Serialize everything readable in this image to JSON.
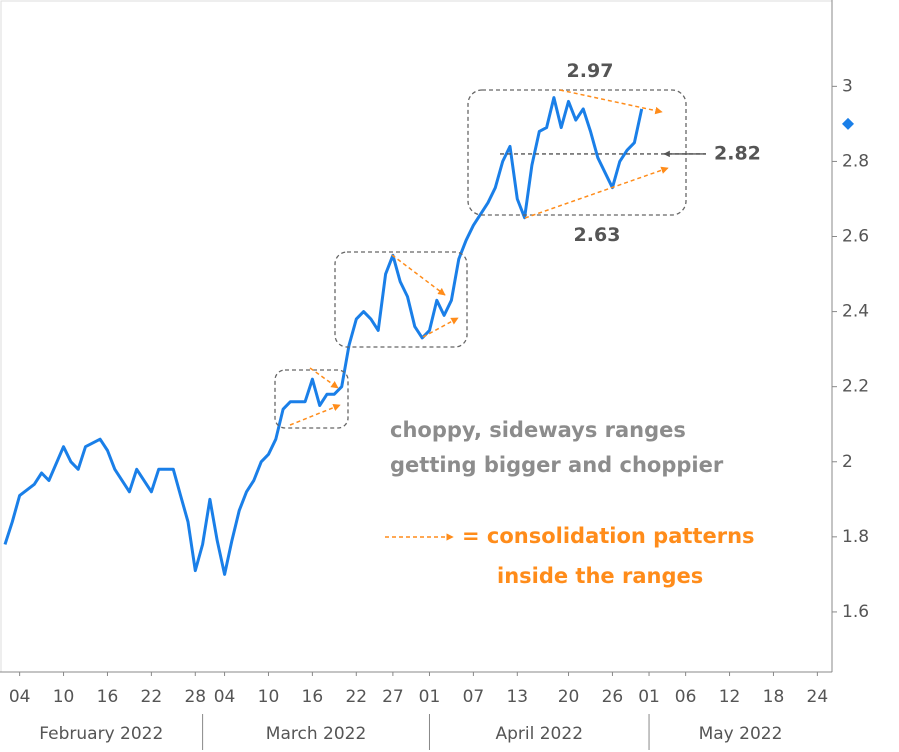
{
  "chart_data": {
    "type": "line",
    "x": [
      "2022-02-02",
      "2022-02-03",
      "2022-02-04",
      "2022-02-06",
      "2022-02-07",
      "2022-02-08",
      "2022-02-10",
      "2022-02-11",
      "2022-02-12",
      "2022-02-13",
      "2022-02-15",
      "2022-02-16",
      "2022-02-17",
      "2022-02-19",
      "2022-02-20",
      "2022-02-22",
      "2022-02-23",
      "2022-02-25",
      "2022-02-26",
      "2022-02-27",
      "2022-02-28",
      "2022-03-01",
      "2022-03-02",
      "2022-03-03",
      "2022-03-04",
      "2022-03-05",
      "2022-03-06",
      "2022-03-07",
      "2022-03-08",
      "2022-03-09",
      "2022-03-10",
      "2022-03-11",
      "2022-03-12",
      "2022-03-13",
      "2022-03-15",
      "2022-03-16",
      "2022-03-17",
      "2022-03-18",
      "2022-03-19",
      "2022-03-20",
      "2022-03-21",
      "2022-03-22",
      "2022-03-23",
      "2022-03-24",
      "2022-03-25",
      "2022-03-26",
      "2022-03-27",
      "2022-03-28",
      "2022-03-29",
      "2022-03-30",
      "2022-03-31",
      "2022-04-01",
      "2022-04-02",
      "2022-04-03",
      "2022-04-04",
      "2022-04-05",
      "2022-04-06",
      "2022-04-07",
      "2022-04-09",
      "2022-04-10",
      "2022-04-11",
      "2022-04-12",
      "2022-04-13",
      "2022-04-14",
      "2022-04-15",
      "2022-04-16",
      "2022-04-17",
      "2022-04-18",
      "2022-04-19",
      "2022-04-20",
      "2022-04-21",
      "2022-04-22",
      "2022-04-23",
      "2022-04-24",
      "2022-04-25",
      "2022-04-26",
      "2022-04-27",
      "2022-04-28",
      "2022-04-29",
      "2022-04-30"
    ],
    "series": [
      {
        "color": "#1a7fe8",
        "values": [
          1.78,
          1.84,
          1.91,
          1.94,
          1.97,
          1.95,
          2.04,
          2.0,
          1.98,
          2.04,
          2.06,
          2.03,
          1.98,
          1.92,
          1.98,
          1.92,
          1.98,
          1.98,
          1.91,
          1.84,
          1.71,
          1.78,
          1.9,
          1.79,
          1.7,
          1.79,
          1.87,
          1.92,
          1.95,
          2.0,
          2.02,
          2.06,
          2.14,
          2.16,
          2.16,
          2.22,
          2.15,
          2.18,
          2.18,
          2.2,
          2.31,
          2.38,
          2.4,
          2.38,
          2.35,
          2.5,
          2.55,
          2.48,
          2.44,
          2.36,
          2.33,
          2.35,
          2.43,
          2.39,
          2.43,
          2.54,
          2.59,
          2.63,
          2.69,
          2.73,
          2.8,
          2.84,
          2.7,
          2.65,
          2.79,
          2.88,
          2.89,
          2.97,
          2.89,
          2.96,
          2.91,
          2.94,
          2.88,
          2.81,
          2.77,
          2.73,
          2.8,
          2.83,
          2.85,
          2.94
        ]
      }
    ],
    "xlim": [
      "2022-02-02",
      "2022-05-26"
    ],
    "xticks": [
      {
        "value": "2022-02-04",
        "label": "04"
      },
      {
        "value": "2022-02-10",
        "label": "10"
      },
      {
        "value": "2022-02-16",
        "label": "16"
      },
      {
        "value": "2022-02-22",
        "label": "22"
      },
      {
        "value": "2022-02-28",
        "label": "28"
      },
      {
        "value": "2022-03-04",
        "label": "04"
      },
      {
        "value": "2022-03-10",
        "label": "10"
      },
      {
        "value": "2022-03-16",
        "label": "16"
      },
      {
        "value": "2022-03-22",
        "label": "22"
      },
      {
        "value": "2022-03-27",
        "label": "27"
      },
      {
        "value": "2022-04-01",
        "label": "01"
      },
      {
        "value": "2022-04-07",
        "label": "07"
      },
      {
        "value": "2022-04-13",
        "label": "13"
      },
      {
        "value": "2022-04-20",
        "label": "20"
      },
      {
        "value": "2022-04-26",
        "label": "26"
      },
      {
        "value": "2022-05-01",
        "label": "01"
      },
      {
        "value": "2022-05-06",
        "label": "06"
      },
      {
        "value": "2022-05-12",
        "label": "12"
      },
      {
        "value": "2022-05-18",
        "label": "18"
      },
      {
        "value": "2022-05-24",
        "label": "24"
      }
    ],
    "months": [
      {
        "value": "2022-02",
        "label": "February 2022"
      },
      {
        "value": "2022-03",
        "label": "March 2022"
      },
      {
        "value": "2022-04",
        "label": "April 2022"
      },
      {
        "value": "2022-05",
        "label": "May 2022"
      }
    ],
    "ylim": [
      1.44,
      3.23
    ],
    "yticks": [
      1.6,
      1.8,
      2,
      2.2,
      2.4,
      2.6,
      2.8,
      3
    ],
    "grid": false,
    "range_high": 2.97,
    "range_low": 2.63,
    "reference_line": 2.82,
    "current_marker": 2.9,
    "annotations": [
      "choppy, sideways ranges",
      "getting bigger and choppier"
    ],
    "pattern_note": [
      "= consolidation patterns",
      "inside the ranges"
    ]
  }
}
